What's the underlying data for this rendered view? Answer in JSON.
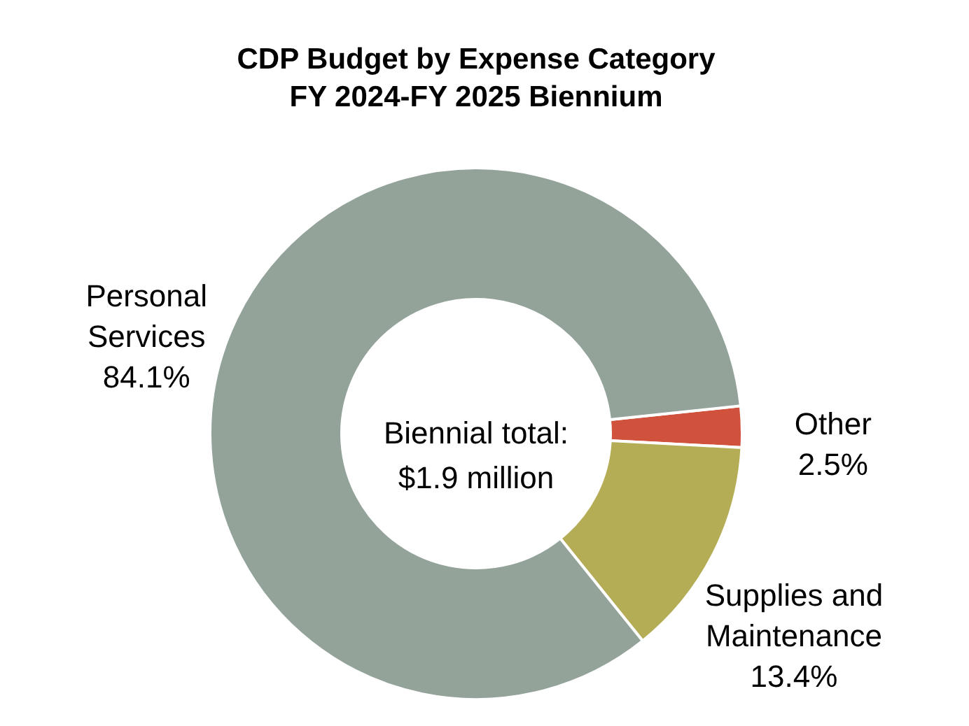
{
  "chart_data": {
    "type": "donut",
    "title": "CDP Budget by Expense Category",
    "subtitle": "FY 2024-FY 2025 Biennium",
    "categories": [
      "Other",
      "Supplies and Maintenance",
      "Personal Services"
    ],
    "values": [
      2.5,
      13.4,
      84.1
    ],
    "colors": [
      "#d0523c",
      "#b5ad55",
      "#93a39a"
    ],
    "value_labels": [
      "2.5%",
      "13.4%",
      "84.1%"
    ],
    "annotations": [
      "Biennial total: $1.9 million"
    ],
    "legend": false
  }
}
